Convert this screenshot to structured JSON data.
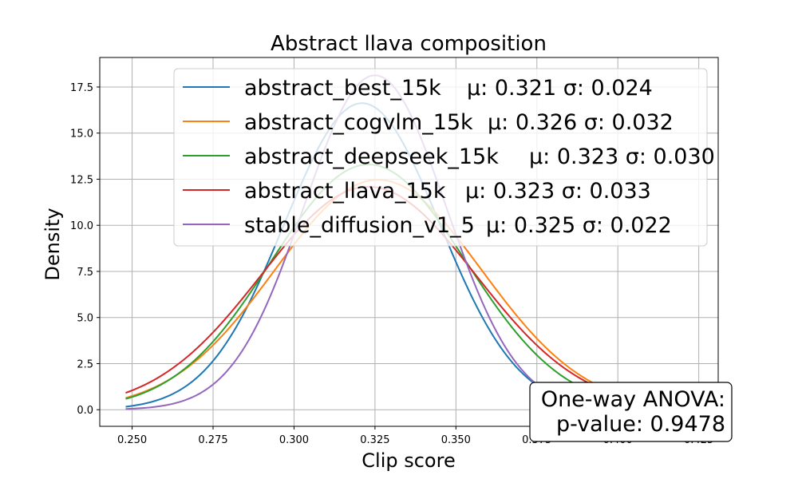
{
  "chart_data": {
    "type": "line",
    "title": "Abstract llava composition",
    "xlabel": "Clip score",
    "ylabel": "Density",
    "xlim": [
      0.24,
      0.431
    ],
    "ylim": [
      -0.9,
      19.1
    ],
    "xticks": [
      0.25,
      0.275,
      0.3,
      0.325,
      0.35,
      0.375,
      0.4,
      0.425
    ],
    "xtick_labels": [
      "0.250",
      "0.275",
      "0.300",
      "0.325",
      "0.350",
      "0.375",
      "0.400",
      "0.425"
    ],
    "yticks": [
      0.0,
      2.5,
      5.0,
      7.5,
      10.0,
      12.5,
      15.0,
      17.5
    ],
    "ytick_labels": [
      "0.0",
      "2.5",
      "5.0",
      "7.5",
      "10.0",
      "12.5",
      "15.0",
      "17.5"
    ],
    "grid": true,
    "legend_position": "top-right",
    "series": [
      {
        "name": "abstract_best_15k",
        "stats": "μ: 0.321 σ: 0.024",
        "mu": 0.321,
        "sigma": 0.024,
        "x_range": [
          0.248,
          0.395
        ],
        "color": "#1f77b4"
      },
      {
        "name": "abstract_cogvlm_15k",
        "stats": "μ: 0.326 σ: 0.032",
        "mu": 0.326,
        "sigma": 0.032,
        "x_range": [
          0.248,
          0.42
        ],
        "color": "#ff7f0e"
      },
      {
        "name": "abstract_deepseek_15k",
        "stats": "μ: 0.323 σ: 0.030",
        "mu": 0.323,
        "sigma": 0.03,
        "x_range": [
          0.248,
          0.42
        ],
        "color": "#2ca02c"
      },
      {
        "name": "abstract_llava_15k",
        "stats": "μ: 0.323 σ: 0.033",
        "mu": 0.323,
        "sigma": 0.033,
        "x_range": [
          0.248,
          0.42
        ],
        "color": "#d62728"
      },
      {
        "name": "stable_diffusion_v1_5",
        "stats": "μ: 0.325 σ: 0.022",
        "mu": 0.325,
        "sigma": 0.022,
        "x_range": [
          0.248,
          0.4
        ],
        "color": "#9467bd"
      }
    ],
    "annotation": {
      "line1": "One-way ANOVA:",
      "line2": "p-value: 0.9478"
    }
  }
}
